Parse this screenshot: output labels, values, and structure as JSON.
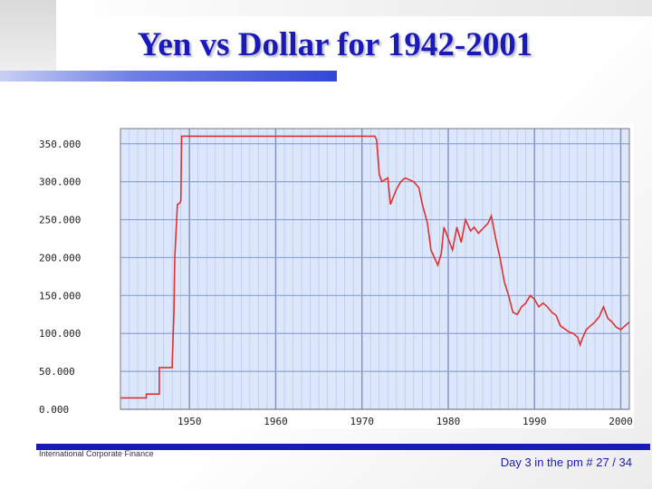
{
  "slide": {
    "title": "Yen vs Dollar for 1942-2001",
    "footer_left": "International Corporate Finance",
    "footer_right": "Day 3 in the pm # 27 / 34"
  },
  "colors": {
    "title": "#1a1ab8",
    "plot_bg": "#dde7fb",
    "grid": "#8ea2d8",
    "line": "#e03030"
  },
  "chart_data": {
    "type": "line",
    "title": "",
    "xlabel": "",
    "ylabel": "",
    "xlim": [
      1942,
      2001
    ],
    "ylim": [
      0,
      370
    ],
    "x_ticks": [
      1950,
      1960,
      1970,
      1980,
      1990,
      2000
    ],
    "x_tick_labels": [
      "1950",
      "1960",
      "1970",
      "1980",
      "1990",
      "2000"
    ],
    "y_ticks": [
      0,
      50,
      100,
      150,
      200,
      250,
      300,
      350
    ],
    "y_tick_labels": [
      "0.000",
      "50.000",
      "100.000",
      "150.000",
      "200.000",
      "250.000",
      "300.000",
      "350.000"
    ],
    "grid": true,
    "series": [
      {
        "name": "",
        "x": [
          1942,
          1945,
          1945,
          1946.5,
          1946.5,
          1948,
          1948,
          1948.2,
          1948.3,
          1948.6,
          1948.9,
          1949,
          1949.1,
          1949.3,
          1949.4,
          1949.6,
          1971.5,
          1971.7,
          1972,
          1972.3,
          1973,
          1973.3,
          1974,
          1974.5,
          1975,
          1976,
          1976.6,
          1977,
          1977.6,
          1978,
          1978.8,
          1979.2,
          1979.5,
          1980,
          1980.5,
          1981,
          1981.5,
          1982,
          1982.6,
          1983,
          1983.5,
          1984,
          1984.6,
          1985,
          1985.5,
          1986,
          1986.5,
          1987,
          1987.5,
          1988,
          1988.5,
          1989,
          1989.5,
          1990,
          1990.5,
          1991,
          1991.5,
          1992,
          1992.5,
          1993,
          1993.5,
          1994,
          1994.5,
          1995,
          1995.3,
          1995.5,
          1996,
          1996.5,
          1997,
          1997.5,
          1998,
          1998.5,
          1999,
          1999.5,
          2000,
          2000.5,
          2001
        ],
        "y": [
          15,
          15,
          20,
          20,
          55,
          55,
          60,
          130,
          200,
          270,
          272,
          275,
          360,
          360,
          360,
          360,
          360,
          355,
          310,
          300,
          305,
          270,
          290,
          300,
          305,
          300,
          292,
          270,
          245,
          210,
          190,
          205,
          240,
          225,
          210,
          240,
          220,
          250,
          235,
          240,
          232,
          238,
          245,
          255,
          225,
          200,
          168,
          150,
          128,
          125,
          135,
          140,
          150,
          145,
          135,
          140,
          135,
          128,
          124,
          110,
          106,
          102,
          100,
          95,
          85,
          92,
          105,
          110,
          115,
          122,
          135,
          120,
          115,
          108,
          105,
          110,
          115
        ]
      }
    ]
  }
}
